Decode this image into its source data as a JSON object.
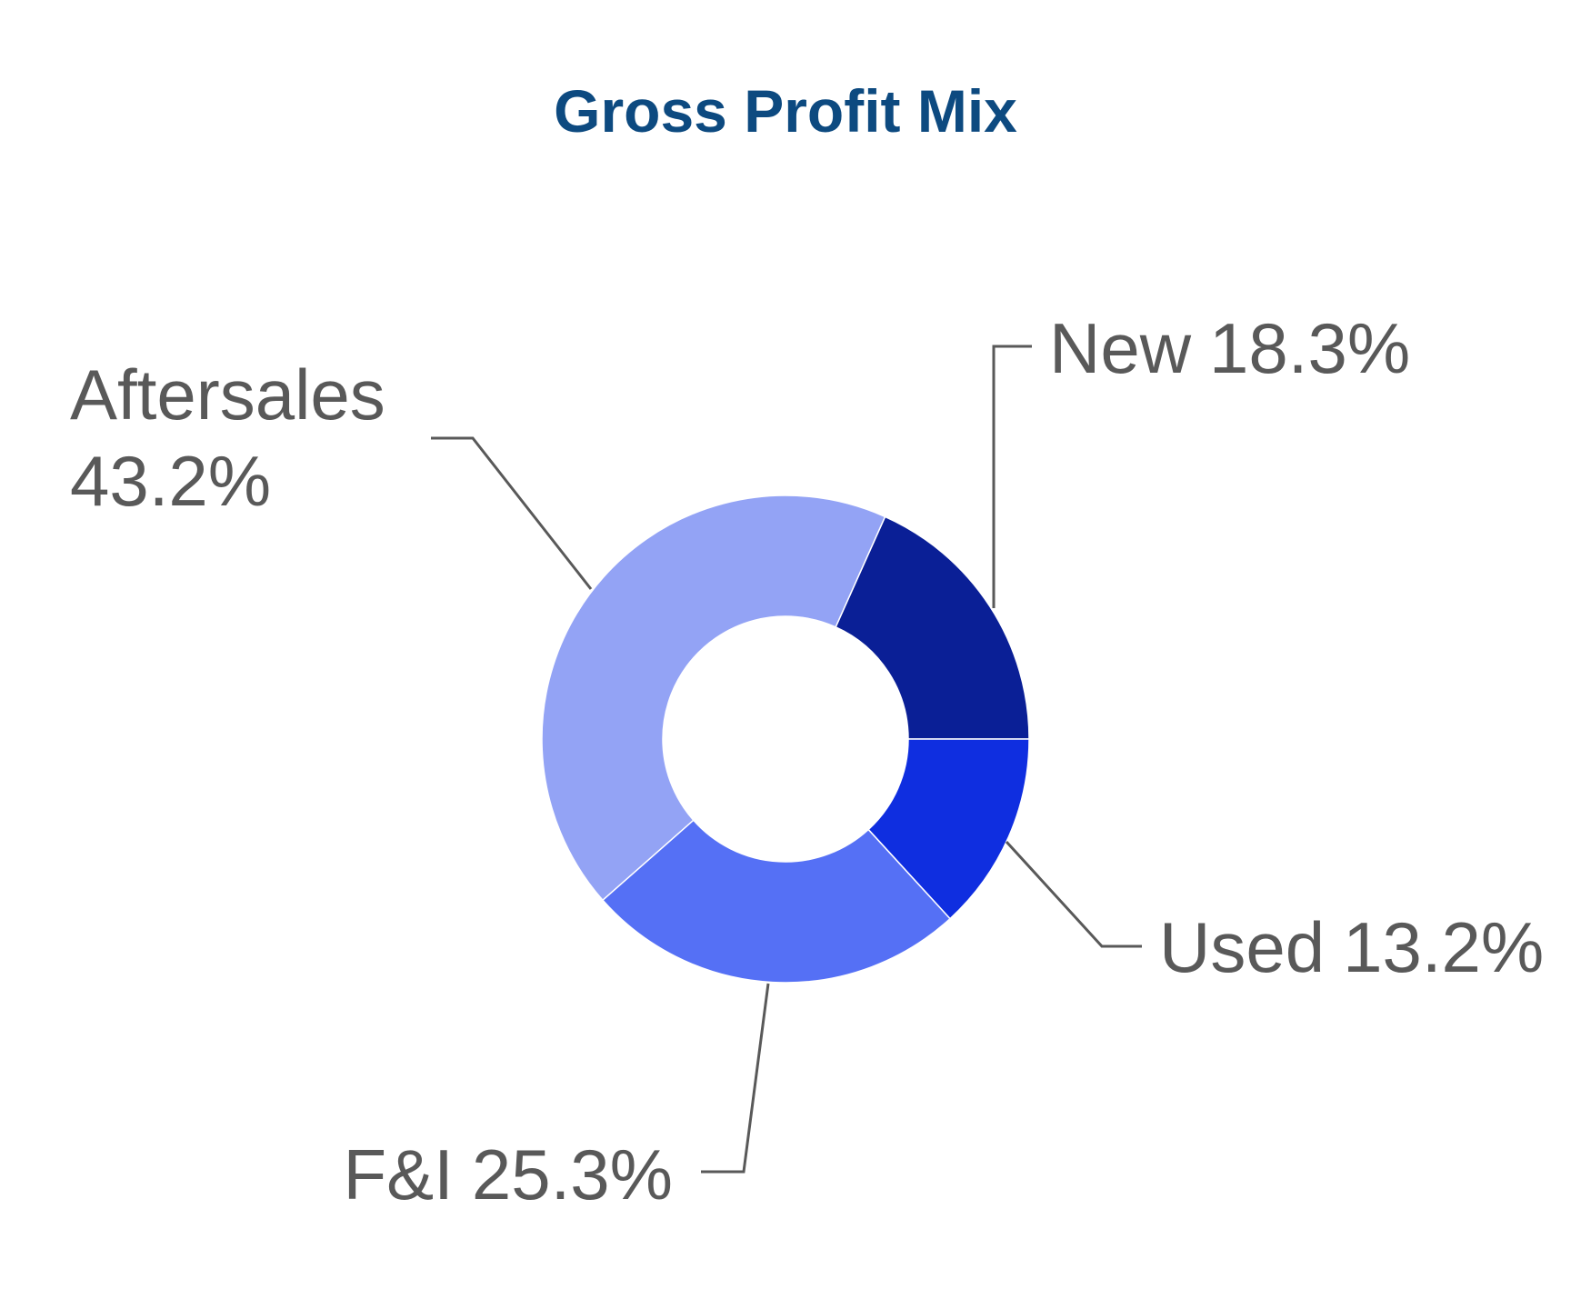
{
  "chart_data": {
    "type": "donut",
    "title": "Gross Profit Mix",
    "categories": [
      "New",
      "Used",
      "F&I",
      "Aftersales"
    ],
    "values": [
      18.3,
      13.2,
      25.3,
      43.2
    ],
    "value_labels": [
      "18.3%",
      "13.2%",
      "25.3%",
      "43.2%"
    ],
    "colors": [
      "#0a1f96",
      "#0f2ee0",
      "#5570f5",
      "#93a3f5"
    ]
  }
}
